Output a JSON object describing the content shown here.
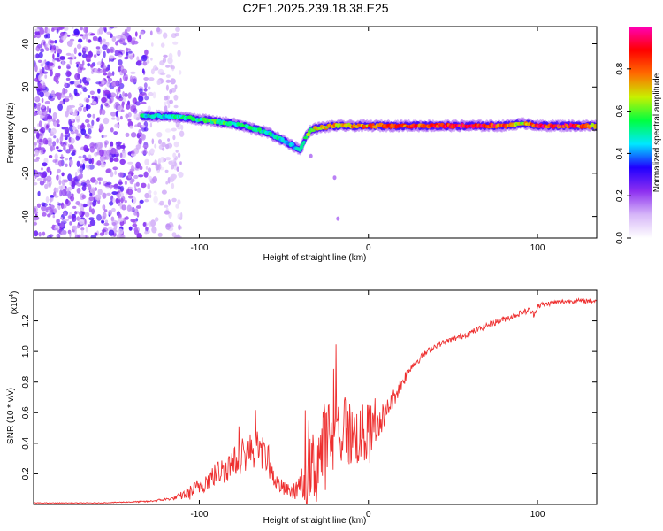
{
  "title": "C2E1.2025.239.18.38.E25",
  "chart_data": [
    {
      "type": "heatmap",
      "title": "C2E1.2025.239.18.38.E25",
      "xlabel": "Height of straight line (km)",
      "ylabel": "Frequency (Hz)",
      "xlim": [
        -198,
        135
      ],
      "ylim": [
        -50,
        48
      ],
      "xticks": [
        -100,
        0,
        100
      ],
      "yticks": [
        -40,
        -20,
        0,
        20,
        40
      ],
      "colorbar": {
        "label": "Normalized spectral amplitude",
        "range": [
          0,
          1
        ],
        "ticks": [
          "0.0",
          "0.2",
          "0.4",
          "0.6",
          "0.8"
        ],
        "tick_values": [
          0.0,
          0.2,
          0.4,
          0.6,
          0.8
        ],
        "colors": [
          "#ffffff",
          "#d6b6f8",
          "#8d2ff0",
          "#2000ff",
          "#00e8ff",
          "#00ff40",
          "#c8f000",
          "#ff6a00",
          "#ff0000",
          "#ff00b8"
        ]
      },
      "noise_region_end_km": -110,
      "dense_noise_end_km": -131,
      "band_track": {
        "x": [
          -134,
          -120,
          -110,
          -100,
          -90,
          -80,
          -70,
          -60,
          -50,
          -45,
          -40,
          -37,
          -34,
          -30,
          -20,
          -10,
          0,
          20,
          40,
          60,
          80,
          90,
          95,
          100,
          120,
          135
        ],
        "freq": [
          6.5,
          6.5,
          6,
          5,
          4,
          3,
          1,
          -1,
          -5,
          -7,
          -9,
          -3,
          0,
          1,
          2,
          2,
          2,
          2,
          2,
          2,
          2,
          3,
          3,
          2,
          2,
          2
        ],
        "amplitude": [
          0.5,
          0.5,
          0.55,
          0.55,
          0.6,
          0.55,
          0.55,
          0.5,
          0.5,
          0.45,
          0.45,
          0.6,
          0.65,
          0.7,
          0.75,
          0.8,
          0.8,
          0.85,
          0.9,
          0.95,
          0.9,
          0.7,
          0.8,
          0.9,
          0.9,
          0.7
        ]
      },
      "isolated_points": [
        {
          "x": -20,
          "freq": -22
        },
        {
          "x": -34,
          "freq": -12
        },
        {
          "x": -18,
          "freq": -41
        }
      ]
    },
    {
      "type": "line",
      "title": "",
      "xlabel": "Height of straight line (km)",
      "ylabel": "SNR (10 * v/v)",
      "yscale_label": "(x10^4)",
      "yscale_base": "(x10",
      "yscale_exp": "4",
      "xlim": [
        -198,
        135
      ],
      "ylim": [
        0,
        1.4
      ],
      "xticks": [
        -100,
        0,
        100
      ],
      "yticks": [
        0.2,
        0.4,
        0.6,
        0.8,
        1.0,
        1.2
      ],
      "ytick_labels": [
        "0.2",
        "0.4",
        "0.6",
        "0.8",
        "1.0",
        "1.2"
      ],
      "series": [
        {
          "name": "SNR",
          "color": "#ee3030",
          "x": [
            -198,
            -160,
            -130,
            -115,
            -105,
            -100,
            -90,
            -80,
            -70,
            -65,
            -60,
            -55,
            -50,
            -45,
            -40,
            -35,
            -30,
            -25,
            -20,
            -15,
            -10,
            -5,
            0,
            5,
            10,
            15,
            20,
            25,
            30,
            35,
            40,
            50,
            60,
            70,
            80,
            90,
            95,
            98,
            100,
            110,
            120,
            135
          ],
          "y": [
            0.01,
            0.01,
            0.02,
            0.04,
            0.08,
            0.12,
            0.2,
            0.27,
            0.35,
            0.37,
            0.3,
            0.15,
            0.1,
            0.08,
            0.12,
            0.18,
            0.3,
            0.4,
            0.45,
            0.5,
            0.45,
            0.45,
            0.45,
            0.5,
            0.6,
            0.7,
            0.8,
            0.9,
            0.95,
            1.0,
            1.04,
            1.08,
            1.12,
            1.17,
            1.21,
            1.25,
            1.27,
            1.24,
            1.3,
            1.32,
            1.33,
            1.33
          ],
          "noise_amplitude": [
            0.002,
            0.002,
            0.005,
            0.01,
            0.05,
            0.06,
            0.08,
            0.1,
            0.12,
            0.12,
            0.1,
            0.06,
            0.05,
            0.04,
            0.1,
            0.25,
            0.3,
            0.3,
            0.28,
            0.25,
            0.22,
            0.2,
            0.22,
            0.12,
            0.08,
            0.06,
            0.05,
            0.03,
            0.025,
            0.02,
            0.02,
            0.02,
            0.02,
            0.02,
            0.02,
            0.02,
            0.02,
            0.02,
            0.02,
            0.015,
            0.015,
            0.015
          ]
        }
      ]
    }
  ]
}
